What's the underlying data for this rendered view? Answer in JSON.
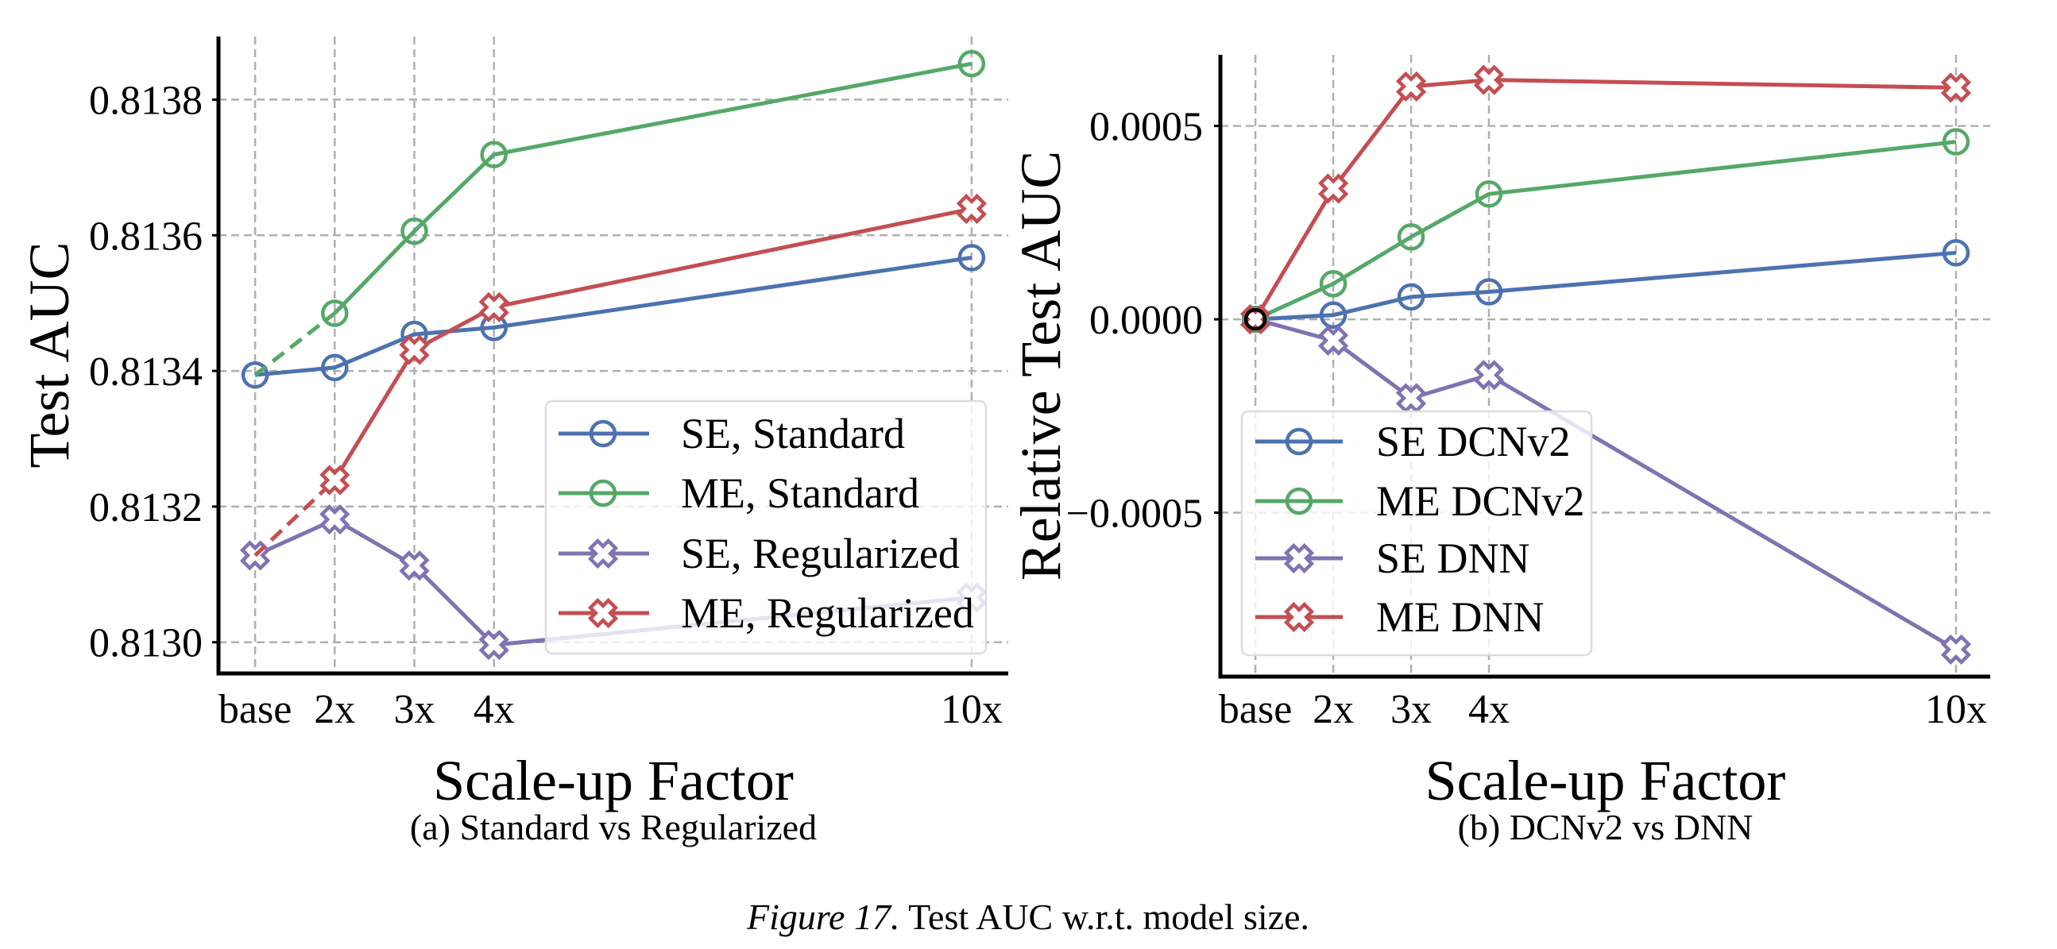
{
  "figure_caption": {
    "label": "Figure 17.",
    "text": " Test AUC w.r.t. model size."
  },
  "chart_data": [
    {
      "type": "line",
      "caption": "(a) Standard vs Regularized",
      "xlabel": "Scale-up Factor",
      "ylabel": "Test AUC",
      "categories": [
        "base",
        "2x",
        "3x",
        "4x",
        "10x"
      ],
      "x": [
        1,
        2,
        3,
        4,
        10
      ],
      "xlim": [
        0.54,
        10.46
      ],
      "ylim": [
        0.812954,
        0.813893
      ],
      "yticks": [
        0.813,
        0.8132,
        0.8134,
        0.8136,
        0.8138
      ],
      "ytick_labels": [
        "0.8130",
        "0.8132",
        "0.8134",
        "0.8136",
        "0.8138"
      ],
      "grid": true,
      "legend_position": "lower-right",
      "series": [
        {
          "name": "SE, Standard",
          "color": "#4C72B0",
          "marker": "circle",
          "dashed_first_segment": false,
          "marker_at_base": true,
          "values": [
            0.813394,
            0.813405,
            0.813454,
            0.813464,
            0.813567
          ]
        },
        {
          "name": "ME, Standard",
          "color": "#55A868",
          "marker": "circle",
          "dashed_first_segment": true,
          "marker_at_base": false,
          "values": [
            0.813394,
            0.813485,
            0.813606,
            0.813719,
            0.813853
          ]
        },
        {
          "name": "SE, Regularized",
          "color": "#8172B2",
          "marker": "x-filled",
          "dashed_first_segment": false,
          "marker_at_base": true,
          "values": [
            0.813128,
            0.813181,
            0.813113,
            0.812996,
            0.813066
          ]
        },
        {
          "name": "ME, Regularized",
          "color": "#C44E52",
          "marker": "x-filled",
          "dashed_first_segment": true,
          "marker_at_base": false,
          "values": [
            0.813128,
            0.813239,
            0.813431,
            0.813494,
            0.813639
          ]
        }
      ]
    },
    {
      "type": "line",
      "caption": "(b) DCNv2 vs DNN",
      "xlabel": "Scale-up Factor",
      "ylabel": "Relative Test AUC",
      "categories": [
        "base",
        "2x",
        "3x",
        "4x",
        "10x"
      ],
      "x": [
        1,
        2,
        3,
        4,
        10
      ],
      "xlim": [
        0.55,
        10.44
      ],
      "ylim": [
        -0.000924,
        0.000684
      ],
      "yticks": [
        -0.0005,
        0.0,
        0.0005
      ],
      "ytick_labels": [
        "−0.0005",
        "0.0000",
        "0.0005"
      ],
      "grid": true,
      "legend_position": "lower-left",
      "baseline_marker_color": "#000000",
      "series": [
        {
          "name": "SE DCNv2",
          "color": "#4C72B0",
          "marker": "circle",
          "dashed_first_segment": false,
          "marker_at_base": true,
          "values": [
            0.0,
            1.1e-05,
            5.8e-05,
            7.1e-05,
            0.000172
          ]
        },
        {
          "name": "ME DCNv2",
          "color": "#55A868",
          "marker": "circle",
          "dashed_first_segment": false,
          "marker_at_base": true,
          "values": [
            0.0,
            9.2e-05,
            0.000213,
            0.000324,
            0.000459
          ]
        },
        {
          "name": "SE DNN",
          "color": "#8172B2",
          "marker": "x-filled",
          "dashed_first_segment": false,
          "marker_at_base": true,
          "values": [
            0.0,
            -5.5e-05,
            -0.000204,
            -0.000144,
            -0.000854
          ]
        },
        {
          "name": "ME DNN",
          "color": "#C44E52",
          "marker": "x-filled",
          "dashed_first_segment": false,
          "marker_at_base": true,
          "values": [
            0.0,
            0.000338,
            0.000602,
            0.000619,
            0.000599
          ]
        }
      ]
    }
  ]
}
